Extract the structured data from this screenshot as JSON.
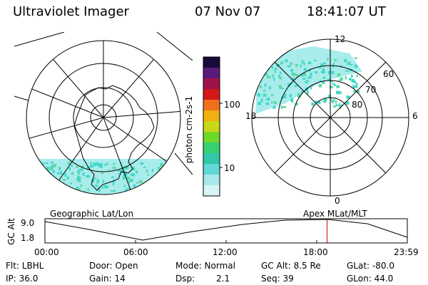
{
  "header": {
    "title": "Ultraviolet Imager",
    "date": "07 Nov 07",
    "time": "18:41:07 UT"
  },
  "left_panel": {
    "label": "Geographic Lat/Lon"
  },
  "right_panel": {
    "label": "Apex MLat/MLT",
    "mlt_labels": [
      "12",
      "18",
      "6",
      "0"
    ],
    "mlat_labels": [
      "60",
      "70",
      "80"
    ]
  },
  "colorbar": {
    "label": "photon cm-2s-1",
    "ticks": [
      "100",
      "10"
    ],
    "colors": [
      "#1a0a3a",
      "#5a1a7a",
      "#a0124a",
      "#d41818",
      "#f07020",
      "#f0b010",
      "#c8d818",
      "#70d828",
      "#38d070",
      "#30c8a8",
      "#60d8d8",
      "#a8e8e8",
      "#d8f4f4"
    ]
  },
  "timeline": {
    "ylabel": "GC Alt",
    "y_ticks": [
      "9.0",
      "1.8"
    ],
    "x_ticks": [
      "00:00",
      "06:00",
      "12:00",
      "18:00",
      "23:59"
    ],
    "current_time_fraction": 0.7785
  },
  "info": {
    "flt": "Flt: LBHL",
    "ip": "IP: 36.0",
    "door": "Door: Open",
    "gain": "Gain: 14",
    "mode": "Mode: Normal",
    "dsp_label": "Dsp:",
    "dsp_value": "2.1",
    "gc_alt": "GC Alt: 8.5 Re",
    "seq": "Seq: 39",
    "glat": "GLat: -80.0",
    "glon": "GLon: 44.0"
  },
  "colors": {
    "aurora": "#40d8c8",
    "aurora_light": "#a8ecec",
    "marker": "#cc0000"
  }
}
